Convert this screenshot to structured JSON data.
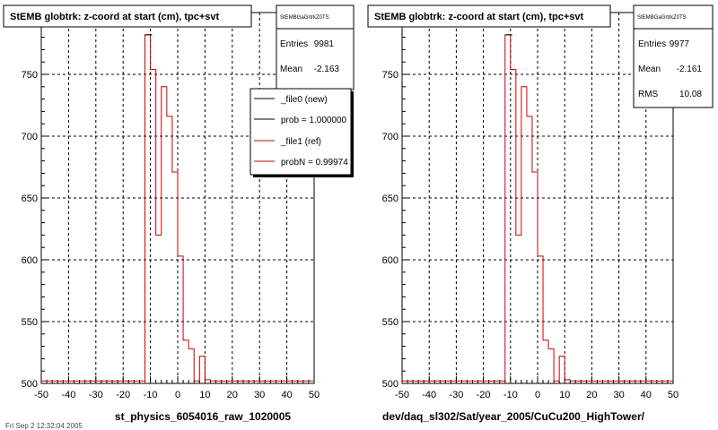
{
  "colors": {
    "ref": "#cc0000",
    "new": "#000000",
    "grid": "#000000"
  },
  "chart_data": [
    {
      "type": "histogram",
      "title": "StEMB globtrk: z-coord at start (cm), tpc+svt",
      "xlabel": "st_physics_6054016_raw_1020005",
      "xlim": [
        -50,
        50
      ],
      "ylim": [
        500,
        800
      ],
      "xticks": [
        -50,
        -40,
        -30,
        -20,
        -10,
        0,
        10,
        20,
        30,
        40,
        50
      ],
      "yticks": [
        550,
        600,
        650,
        700,
        750
      ],
      "ytick_labels_extra": [
        "500"
      ],
      "grid": true,
      "stats": {
        "name": "StEMBGaGrtrkZ0TS",
        "rows": [
          {
            "label": "Entries",
            "value": "9981"
          },
          {
            "label": "Mean",
            "value": "-2.163"
          }
        ]
      },
      "legend": {
        "placement": "top-right",
        "entries": [
          {
            "label": "_file0 (new)",
            "color": "#000000"
          },
          {
            "label": "prob = 1.000000",
            "color": "#000000"
          },
          {
            "label": "_file1 (ref)",
            "color": "#cc0000"
          },
          {
            "label": "probN = 0.99974",
            "color": "#cc0000"
          }
        ]
      },
      "bin_edges": [
        -50,
        -12,
        -10,
        -8,
        -6,
        -4,
        -2,
        0,
        2,
        4,
        6,
        8,
        10,
        12,
        50
      ],
      "series": [
        {
          "name": "_file1 (ref)",
          "values": [
            502,
            782,
            754,
            620,
            740,
            716,
            671,
            603,
            535,
            528,
            502,
            522,
            503,
            502
          ]
        }
      ]
    },
    {
      "type": "histogram",
      "title": "StEMB globtrk: z-coord at start (cm), tpc+svt",
      "xlabel": "dev/daq_sl302/Sat/year_2005/CuCu200_HighTower/",
      "xlim": [
        -50,
        50
      ],
      "ylim": [
        500,
        800
      ],
      "xticks": [
        -50,
        -40,
        -30,
        -20,
        -10,
        0,
        10,
        20,
        30,
        40,
        50
      ],
      "yticks": [
        550,
        600,
        650,
        700,
        750
      ],
      "ytick_labels_extra": [
        "500"
      ],
      "grid": true,
      "stats": {
        "name": "StEMBGaGrtrkZ0TS",
        "rows": [
          {
            "label": "Entries",
            "value": "9977"
          },
          {
            "label": "Mean",
            "value": "-2.161"
          },
          {
            "label": "RMS",
            "value": "10.08"
          }
        ]
      },
      "bin_edges": [
        -50,
        -12,
        -10,
        -8,
        -6,
        -4,
        -2,
        0,
        2,
        4,
        6,
        8,
        10,
        12,
        50
      ],
      "series": [
        {
          "name": "",
          "values": [
            502,
            782,
            754,
            620,
            740,
            716,
            671,
            603,
            535,
            528,
            502,
            522,
            503,
            502
          ]
        }
      ]
    }
  ],
  "footer_timestamp": "Fri Sep  2 12:32:04 2005"
}
